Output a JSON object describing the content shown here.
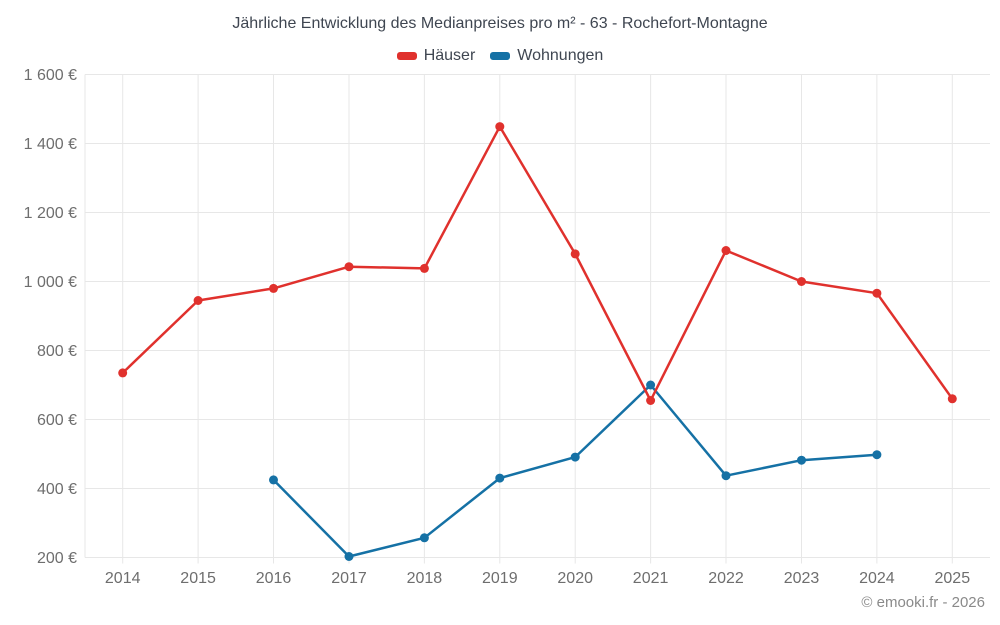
{
  "chart_data": {
    "type": "line",
    "title": "Jährliche Entwicklung des Medianpreises pro m² - 63 - Rochefort-Montagne",
    "categories": [
      "2014",
      "2015",
      "2016",
      "2017",
      "2018",
      "2019",
      "2020",
      "2021",
      "2022",
      "2023",
      "2024",
      "2025"
    ],
    "series": [
      {
        "name": "Häuser",
        "color": "#e0312d",
        "values": [
          735,
          945,
          980,
          1043,
          1038,
          1449,
          1080,
          655,
          1090,
          1000,
          966,
          660
        ]
      },
      {
        "name": "Wohnungen",
        "color": "#1571a5",
        "values": [
          null,
          null,
          425,
          203,
          257,
          430,
          491,
          700,
          437,
          482,
          498,
          null
        ]
      }
    ],
    "xlabel": "",
    "ylabel": "",
    "ylim": [
      200,
      1600
    ],
    "ytick_step": 200,
    "ytick_labels": [
      "200 €",
      "400 €",
      "600 €",
      "800 €",
      "1 000 €",
      "1 200 €",
      "1 400 €",
      "1 600 €"
    ],
    "grid": true,
    "legend_position": "top",
    "marker": "circle",
    "currency_suffix": " €"
  },
  "watermark": "© emooki.fr - 2026",
  "colors": {
    "grid": "#e7e7e7",
    "axis_text": "#6e6e6e",
    "title_text": "#3f4651",
    "watermark_text": "#8a8a8a",
    "background": "#ffffff"
  }
}
